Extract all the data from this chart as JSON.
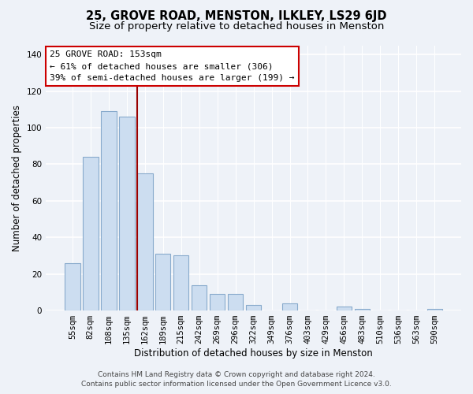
{
  "title": "25, GROVE ROAD, MENSTON, ILKLEY, LS29 6JD",
  "subtitle": "Size of property relative to detached houses in Menston",
  "xlabel": "Distribution of detached houses by size in Menston",
  "ylabel": "Number of detached properties",
  "categories": [
    "55sqm",
    "82sqm",
    "108sqm",
    "135sqm",
    "162sqm",
    "189sqm",
    "215sqm",
    "242sqm",
    "269sqm",
    "296sqm",
    "322sqm",
    "349sqm",
    "376sqm",
    "403sqm",
    "429sqm",
    "456sqm",
    "483sqm",
    "510sqm",
    "536sqm",
    "563sqm",
    "590sqm"
  ],
  "values": [
    26,
    84,
    109,
    106,
    75,
    31,
    30,
    14,
    9,
    9,
    3,
    0,
    4,
    0,
    0,
    2,
    1,
    0,
    0,
    0,
    1
  ],
  "bar_color": "#ccddf0",
  "bar_edge_color": "#88aacc",
  "highlight_index": 4,
  "vline_color": "#990000",
  "ylim": [
    0,
    145
  ],
  "yticks": [
    0,
    20,
    40,
    60,
    80,
    100,
    120,
    140
  ],
  "annotation_title": "25 GROVE ROAD: 153sqm",
  "annotation_line1": "← 61% of detached houses are smaller (306)",
  "annotation_line2": "39% of semi-detached houses are larger (199) →",
  "annotation_box_color": "#ffffff",
  "annotation_box_edge": "#cc0000",
  "footer_line1": "Contains HM Land Registry data © Crown copyright and database right 2024.",
  "footer_line2": "Contains public sector information licensed under the Open Government Licence v3.0.",
  "background_color": "#eef2f8",
  "grid_color": "#ffffff",
  "title_fontsize": 10.5,
  "subtitle_fontsize": 9.5,
  "axis_label_fontsize": 8.5,
  "tick_fontsize": 7.5,
  "annotation_fontsize": 8,
  "footer_fontsize": 6.5
}
